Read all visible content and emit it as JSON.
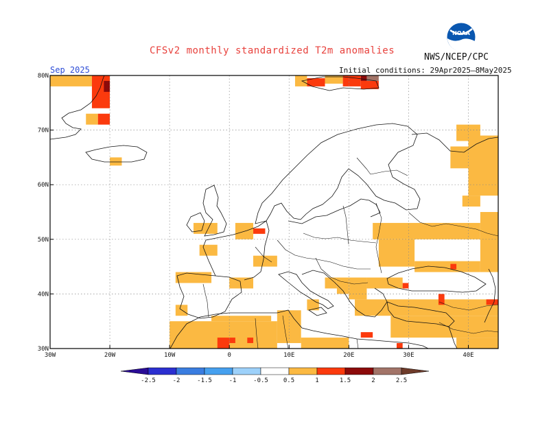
{
  "title": "CFSv2 monthly standardized T2m anomalies",
  "agency": "NWS/NCEP/CPC",
  "logo_text": "NOAA",
  "month": "Sep 2025",
  "initial_conditions": "Initial conditions: 29Apr2025–8May2025",
  "map": {
    "lon_range": [
      -30,
      45
    ],
    "lat_range": [
      30,
      80
    ],
    "lon_ticks": [
      {
        "lon": -30,
        "label": "30W"
      },
      {
        "lon": -20,
        "label": "20W"
      },
      {
        "lon": -10,
        "label": "10W"
      },
      {
        "lon": 0,
        "label": "0"
      },
      {
        "lon": 10,
        "label": "10E"
      },
      {
        "lon": 20,
        "label": "20E"
      },
      {
        "lon": 30,
        "label": "30E"
      },
      {
        "lon": 40,
        "label": "40E"
      }
    ],
    "lat_ticks": [
      {
        "lat": 30,
        "label": "30N"
      },
      {
        "lat": 40,
        "label": "40N"
      },
      {
        "lat": 50,
        "label": "50N"
      },
      {
        "lat": 60,
        "label": "60N"
      },
      {
        "lat": 70,
        "label": "70N"
      },
      {
        "lat": 80,
        "label": "80N"
      }
    ],
    "grid": "dotted",
    "anomaly_cells": [
      {
        "lon": -30,
        "lat": 78,
        "w": 7,
        "h": 2,
        "v": 0.7
      },
      {
        "lon": -23,
        "lat": 74,
        "w": 3,
        "h": 6,
        "v": 1.3
      },
      {
        "lon": -22,
        "lat": 71,
        "w": 2,
        "h": 2,
        "v": 1.3
      },
      {
        "lon": -24,
        "lat": 71,
        "w": 2,
        "h": 2,
        "v": 0.7
      },
      {
        "lon": -21,
        "lat": 77,
        "w": 1,
        "h": 2,
        "v": 1.7
      },
      {
        "lon": -20,
        "lat": 63.5,
        "w": 2,
        "h": 1.5,
        "v": 0.7
      },
      {
        "lon": 11,
        "lat": 78,
        "w": 2,
        "h": 2,
        "v": 0.7
      },
      {
        "lon": 13,
        "lat": 78,
        "w": 3,
        "h": 1.5,
        "v": 1.3
      },
      {
        "lon": 16,
        "lat": 78.5,
        "w": 3,
        "h": 1.5,
        "v": 0.7
      },
      {
        "lon": 19,
        "lat": 78,
        "w": 3,
        "h": 2,
        "v": 1.3
      },
      {
        "lon": 22,
        "lat": 79,
        "w": 1,
        "h": 1,
        "v": 1.7
      },
      {
        "lon": 23,
        "lat": 79,
        "w": 2,
        "h": 1,
        "v": 2.2
      },
      {
        "lon": 22,
        "lat": 77.5,
        "w": 3,
        "h": 1.5,
        "v": 1.3
      },
      {
        "lon": 38,
        "lat": 68,
        "w": 4,
        "h": 3,
        "v": 0.7
      },
      {
        "lon": 40,
        "lat": 58,
        "w": 5,
        "h": 11,
        "v": 0.7
      },
      {
        "lon": 37,
        "lat": 63,
        "w": 3,
        "h": 4,
        "v": 0.7
      },
      {
        "lon": 39,
        "lat": 56,
        "w": 3,
        "h": 2,
        "v": 0.7
      },
      {
        "lon": 42,
        "lat": 44,
        "w": 3,
        "h": 11,
        "v": 0.7
      },
      {
        "lon": 24,
        "lat": 50,
        "w": 18,
        "h": 3,
        "v": 0.7
      },
      {
        "lon": 25,
        "lat": 45,
        "w": 6,
        "h": 5,
        "v": 0.7
      },
      {
        "lon": 31,
        "lat": 44,
        "w": 11,
        "h": 2,
        "v": 0.7
      },
      {
        "lon": 23,
        "lat": 41,
        "w": 6,
        "h": 2,
        "v": 0.7
      },
      {
        "lon": 20,
        "lat": 39,
        "w": 3,
        "h": 4,
        "v": 0.7
      },
      {
        "lon": 18,
        "lat": 40,
        "w": 2,
        "h": 3,
        "v": 0.7
      },
      {
        "lon": 21,
        "lat": 36,
        "w": 24,
        "h": 3,
        "v": 0.7
      },
      {
        "lon": 27,
        "lat": 32,
        "w": 18,
        "h": 4,
        "v": 0.7
      },
      {
        "lon": 38,
        "lat": 30,
        "w": 7,
        "h": 2,
        "v": 0.7
      },
      {
        "lon": 35,
        "lat": 38,
        "w": 1,
        "h": 2,
        "v": 1.3
      },
      {
        "lon": 43,
        "lat": 38,
        "w": 2,
        "h": 1,
        "v": 1.3
      },
      {
        "lon": 29,
        "lat": 41,
        "w": 1,
        "h": 1,
        "v": 1.3
      },
      {
        "lon": 37,
        "lat": 44.5,
        "w": 1,
        "h": 1,
        "v": 1.3
      },
      {
        "lon": 22,
        "lat": 32,
        "w": 2,
        "h": 1,
        "v": 1.3
      },
      {
        "lon": 28,
        "lat": 30,
        "w": 1,
        "h": 1,
        "v": 1.3
      },
      {
        "lon": 4,
        "lat": 45,
        "w": 4,
        "h": 2,
        "v": 0.7
      },
      {
        "lon": -9,
        "lat": 42,
        "w": 6,
        "h": 2,
        "v": 0.7
      },
      {
        "lon": 0,
        "lat": 41,
        "w": 4,
        "h": 2,
        "v": 0.7
      },
      {
        "lon": 1,
        "lat": 50,
        "w": 3,
        "h": 3,
        "v": 0.7
      },
      {
        "lon": -6,
        "lat": 51,
        "w": 4,
        "h": 2,
        "v": 0.7
      },
      {
        "lon": -5,
        "lat": 47,
        "w": 3,
        "h": 2,
        "v": 0.7
      },
      {
        "lon": 4,
        "lat": 51,
        "w": 2,
        "h": 1,
        "v": 1.3
      },
      {
        "lon": -9,
        "lat": 36,
        "w": 2,
        "h": 2,
        "v": 0.7
      },
      {
        "lon": 13,
        "lat": 37,
        "w": 2,
        "h": 2,
        "v": 0.7
      },
      {
        "lon": 16,
        "lat": 41,
        "w": 2,
        "h": 2,
        "v": 0.7
      },
      {
        "lon": -10,
        "lat": 30,
        "w": 18,
        "h": 5,
        "v": 0.7
      },
      {
        "lon": -3,
        "lat": 35,
        "w": 10,
        "h": 1,
        "v": 0.7
      },
      {
        "lon": 8,
        "lat": 31,
        "w": 4,
        "h": 6,
        "v": 0.7
      },
      {
        "lon": 12,
        "lat": 30,
        "w": 8,
        "h": 2,
        "v": 0.7
      },
      {
        "lon": -2,
        "lat": 30,
        "w": 2,
        "h": 2,
        "v": 1.3
      },
      {
        "lon": 0,
        "lat": 31,
        "w": 1,
        "h": 1,
        "v": 1.3
      },
      {
        "lon": 3,
        "lat": 31,
        "w": 1,
        "h": 1,
        "v": 1.3
      }
    ]
  },
  "colorbar": {
    "ticks": [
      "-2.5",
      "-2",
      "-1.5",
      "-1",
      "-0.5",
      "0.5",
      "1",
      "1.5",
      "2",
      "2.5"
    ],
    "colors": [
      "#2a0c96",
      "#2b2fd0",
      "#3a7de0",
      "#46a0ef",
      "#9dd1fa",
      "#ffffff",
      "#fbb942",
      "#fb3a0d",
      "#8c0a0a",
      "#a27468",
      "#6e3b2a"
    ]
  }
}
